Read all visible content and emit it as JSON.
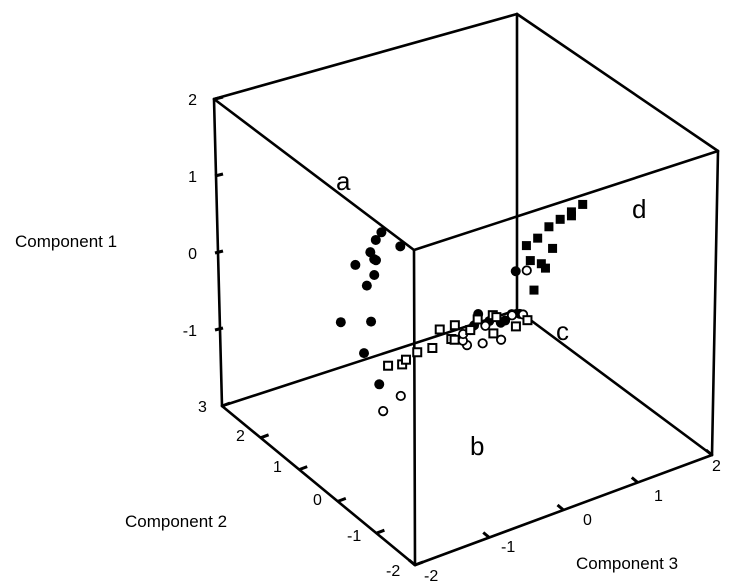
{
  "chart_data": {
    "type": "scatter",
    "title": "",
    "axes": {
      "component1": {
        "label": "Component 1",
        "range": [
          -2,
          2
        ],
        "ticks": [
          "2",
          "1",
          "0",
          "-1"
        ]
      },
      "component2": {
        "label": "Component 2",
        "range": [
          -2,
          3
        ],
        "ticks": [
          "3",
          "2",
          "1",
          "0",
          "-1",
          "-2"
        ]
      },
      "component3": {
        "label": "Component 3",
        "range": [
          -2,
          2
        ],
        "ticks": [
          "-2",
          "-1",
          "0",
          "1",
          "2"
        ]
      }
    },
    "cluster_labels": [
      "a",
      "b",
      "c",
      "d"
    ],
    "legend": "none",
    "grid": false,
    "series": [
      {
        "marker": "filled-circle",
        "cluster": "a",
        "points": [
          [
            0.95,
            0.1,
            -1.5
          ],
          [
            1.05,
            0.15,
            -1.4
          ],
          [
            1.15,
            0.1,
            -1.35
          ],
          [
            1.0,
            -0.1,
            -1.2
          ],
          [
            0.9,
            0.0,
            -1.5
          ],
          [
            0.8,
            0.2,
            -1.65
          ],
          [
            0.6,
            0.0,
            -1.6
          ],
          [
            0.3,
            -0.3,
            -1.7
          ],
          [
            0.2,
            0.1,
            -1.9
          ],
          [
            0.05,
            -0.5,
            -1.9
          ],
          [
            -0.3,
            -0.7,
            -1.8
          ],
          [
            0.7,
            0.0,
            -1.5
          ],
          [
            0.85,
            0.05,
            -1.45
          ]
        ]
      },
      {
        "marker": "filled-circle",
        "cluster": "c",
        "points": [
          [
            -0.2,
            -0.5,
            0.0
          ],
          [
            -0.3,
            -0.3,
            0.3
          ],
          [
            -0.5,
            0.0,
            0.2
          ],
          [
            -0.7,
            0.5,
            0.1
          ],
          [
            -0.6,
            0.3,
            0.2
          ],
          [
            -0.4,
            0.2,
            0.0
          ],
          [
            -0.5,
            0.1,
            0.4
          ],
          [
            0.2,
            -0.2,
            0.3
          ]
        ]
      },
      {
        "marker": "open-circle",
        "cluster": "c",
        "points": [
          [
            -0.6,
            -0.2,
            0.1
          ],
          [
            -0.8,
            0.3,
            -0.1
          ],
          [
            -0.4,
            -0.1,
            0.3
          ],
          [
            -0.9,
            0.6,
            0.0
          ],
          [
            -0.7,
            0.4,
            0.2
          ],
          [
            -0.5,
            0.0,
            0.5
          ],
          [
            -0.6,
            -0.8,
            -1.8
          ],
          [
            -0.9,
            -0.1,
            -1.2
          ],
          [
            -0.5,
            -0.3,
            -0.2
          ],
          [
            0.1,
            -0.1,
            0.5
          ],
          [
            -0.7,
            0.4,
            -0.1
          ],
          [
            -0.8,
            0.6,
            0.1
          ]
        ]
      },
      {
        "marker": "filled-square",
        "cluster": "d",
        "points": [
          [
            0.85,
            -0.4,
            1.1
          ],
          [
            0.75,
            -0.3,
            1.0
          ],
          [
            0.65,
            -0.2,
            0.9
          ],
          [
            0.55,
            -0.1,
            0.8
          ],
          [
            0.4,
            0.0,
            0.7
          ],
          [
            0.3,
            0.1,
            0.6
          ],
          [
            0.15,
            0.0,
            0.6
          ],
          [
            0.0,
            0.1,
            0.8
          ],
          [
            0.1,
            -0.2,
            0.7
          ],
          [
            -0.3,
            0.1,
            0.7
          ],
          [
            0.7,
            -0.3,
            1.0
          ],
          [
            0.2,
            0.0,
            0.9
          ]
        ]
      },
      {
        "marker": "open-square",
        "cluster": "b",
        "points": [
          [
            -1.5,
            1.6,
            -0.3
          ],
          [
            -1.4,
            1.5,
            -0.3
          ],
          [
            -1.3,
            1.4,
            -0.2
          ],
          [
            -1.2,
            1.2,
            -0.1
          ],
          [
            -1.0,
            1.2,
            0.0
          ],
          [
            -0.9,
            1.0,
            0.1
          ],
          [
            -0.7,
            0.6,
            0.2
          ],
          [
            -0.6,
            0.4,
            0.3
          ],
          [
            -1.1,
            1.0,
            -0.8
          ],
          [
            -0.6,
            0.0,
            0.1
          ],
          [
            -0.5,
            -0.2,
            0.3
          ],
          [
            -0.8,
            0.6,
            0.1
          ],
          [
            -1.0,
            0.9,
            0.0
          ],
          [
            -0.7,
            0.5,
            0.4
          ],
          [
            -1.2,
            1.2,
            0.2
          ],
          [
            -0.3,
            -0.5,
            0.3
          ]
        ]
      }
    ]
  }
}
